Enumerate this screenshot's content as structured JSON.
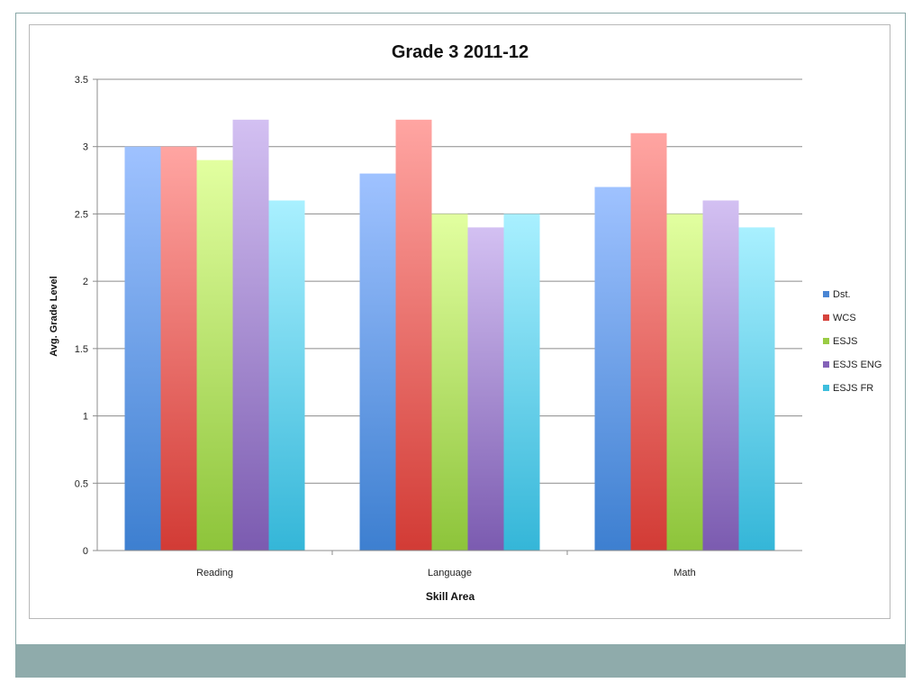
{
  "chart_data": {
    "type": "bar",
    "title": "Grade 3 2011-12",
    "xlabel": "Skill Area",
    "ylabel": "Avg. Grade Level",
    "ylim": [
      0,
      3.5
    ],
    "yticks": [
      0,
      0.5,
      1,
      1.5,
      2,
      2.5,
      3,
      3.5
    ],
    "ytick_labels": [
      "0",
      "0.5",
      "1",
      "1.5",
      "2",
      "2.5",
      "3",
      "3.5"
    ],
    "categories": [
      "Reading",
      "Language",
      "Math"
    ],
    "grid": true,
    "legend_position": "right",
    "series": [
      {
        "name": "Dst.",
        "values": [
          3.0,
          2.8,
          2.7
        ],
        "color_top": "#9fc2ff",
        "color_bottom": "#3d7fd0",
        "legend_color": "#4a86d4"
      },
      {
        "name": "WCS",
        "values": [
          3.0,
          3.2,
          3.1
        ],
        "color_top": "#ffa5a2",
        "color_bottom": "#d23b35",
        "legend_color": "#d6443e"
      },
      {
        "name": "ESJS",
        "values": [
          2.9,
          2.5,
          2.5
        ],
        "color_top": "#e2ffa0",
        "color_bottom": "#8dc43a",
        "legend_color": "#9acc44"
      },
      {
        "name": "ESJS ENG",
        "values": [
          3.2,
          2.4,
          2.6
        ],
        "color_top": "#d3c0f2",
        "color_bottom": "#7b5bb0",
        "legend_color": "#8462b8"
      },
      {
        "name": "ESJS FR",
        "values": [
          2.6,
          2.5,
          2.4
        ],
        "color_top": "#a9f0ff",
        "color_bottom": "#34b6d8",
        "legend_color": "#3ebedd"
      }
    ]
  }
}
